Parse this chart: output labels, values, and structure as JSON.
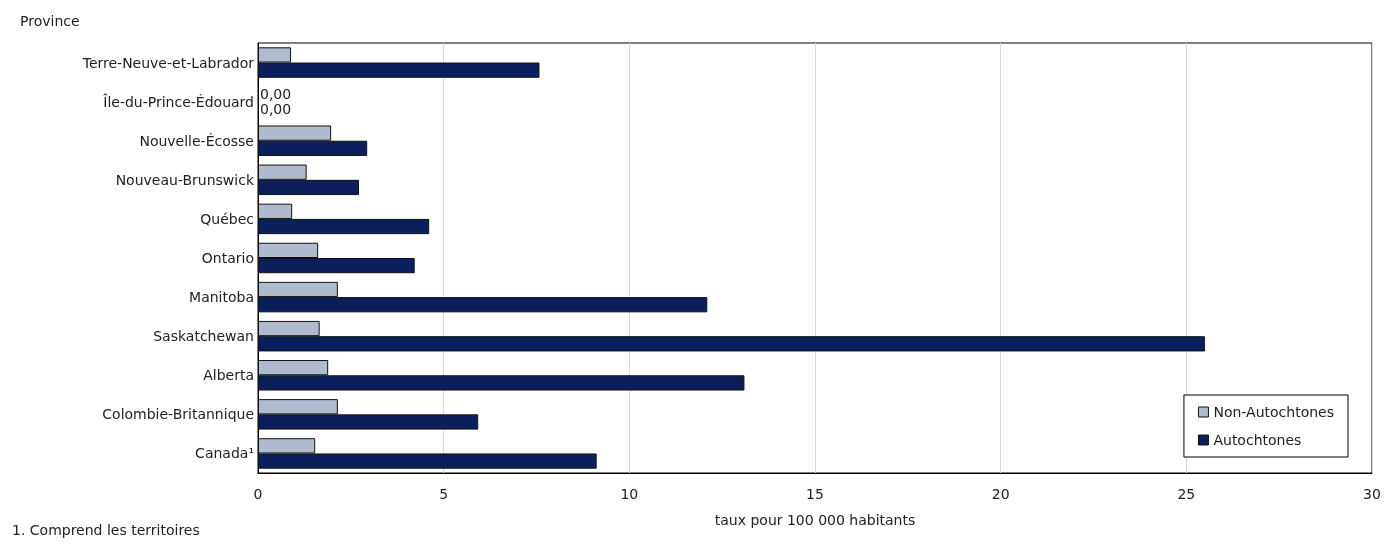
{
  "chart_data": {
    "type": "bar",
    "orientation": "horizontal",
    "ylabel": "Province",
    "xlabel": "taux pour 100 000 habitants",
    "categories": [
      "Terre-Neuve-et-Labrador",
      "Île-du-Prince-Édouard",
      "Nouvelle-Écosse",
      "Nouveau-Brunswick",
      "Québec",
      "Ontario",
      "Manitoba",
      "Saskatchewan",
      "Alberta",
      "Colombie-Britannique",
      "Canada¹"
    ],
    "series": [
      {
        "name": "Non-Autochtones",
        "color": "#b0bccd",
        "values": [
          0.89,
          0,
          1.97,
          1.31,
          0.92,
          1.62,
          2.15,
          1.66,
          1.89,
          2.15,
          1.54
        ],
        "value_labels": [
          null,
          "0,00",
          null,
          null,
          null,
          null,
          null,
          null,
          null,
          null,
          null
        ]
      },
      {
        "name": "Autochtones",
        "color": "#0a1f5c",
        "values": [
          7.58,
          0,
          2.94,
          2.72,
          4.61,
          4.22,
          12.1,
          25.5,
          13.1,
          5.93,
          9.12
        ],
        "value_labels": [
          null,
          "0,00",
          null,
          null,
          null,
          null,
          null,
          null,
          null,
          null,
          null
        ]
      }
    ],
    "xlim": [
      0,
      30
    ],
    "xticks": [
      0,
      5,
      10,
      15,
      20,
      25,
      30
    ],
    "grid": "x",
    "legend": "bottom right",
    "annotations": [
      "1. Comprend les territoires"
    ]
  }
}
